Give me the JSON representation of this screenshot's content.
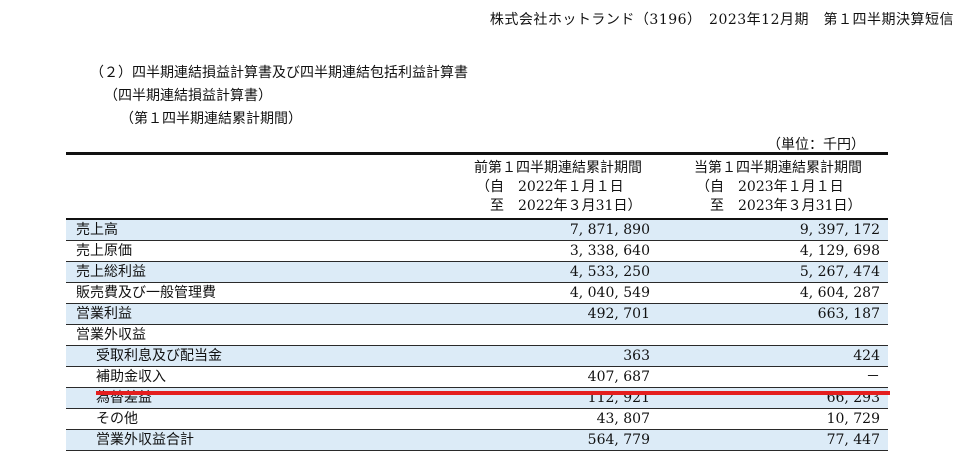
{
  "header": "株式会社ホットランド（3196）　2023年12月期　第１四半期決算短信",
  "section": {
    "line1": "（２）四半期連結損益計算書及び四半期連結包括利益計算書",
    "line2": "（四半期連結損益計算書）",
    "line3": "（第１四半期連結累計期間）"
  },
  "unit": "（単位：千円）",
  "columns": [
    {
      "title": "前第１四半期連結累計期間",
      "from": "（自　2022年１月１日",
      "to": "　至　2022年３月31日）"
    },
    {
      "title": "当第１四半期連結累計期間",
      "from": "（自　2023年１月１日",
      "to": "　至　2023年３月31日）"
    }
  ],
  "rows": [
    {
      "label": "売上高",
      "prev": "7, 871, 890",
      "curr": "9, 397, 172"
    },
    {
      "label": "売上原価",
      "prev": "3, 338, 640",
      "curr": "4, 129, 698"
    },
    {
      "label": "売上総利益",
      "prev": "4, 533, 250",
      "curr": "5, 267, 474"
    },
    {
      "label": "販売費及び一般管理費",
      "prev": "4, 040, 549",
      "curr": "4, 604, 287"
    },
    {
      "label": "営業利益",
      "prev": "492, 701",
      "curr": "663, 187"
    },
    {
      "label": "営業外収益",
      "prev": "",
      "curr": ""
    },
    {
      "label": "受取利息及び配当金",
      "prev": "363",
      "curr": "424"
    },
    {
      "label": "補助金収入",
      "prev": "407, 687",
      "curr": "－"
    },
    {
      "label": "為替差益",
      "prev": "112, 921",
      "curr": "66, 293"
    },
    {
      "label": "その他",
      "prev": "43, 807",
      "curr": "10, 729"
    },
    {
      "label": "営業外収益合計",
      "prev": "564, 779",
      "curr": "77, 447"
    }
  ],
  "colors": {
    "row_shade": "#dcebf7",
    "highlight_line": "#e41e1e"
  }
}
